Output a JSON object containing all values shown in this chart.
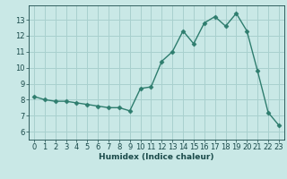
{
  "x": [
    0,
    1,
    2,
    3,
    4,
    5,
    6,
    7,
    8,
    9,
    10,
    11,
    12,
    13,
    14,
    15,
    16,
    17,
    18,
    19,
    20,
    21,
    22,
    23
  ],
  "y": [
    8.2,
    8.0,
    7.9,
    7.9,
    7.8,
    7.7,
    7.6,
    7.5,
    7.5,
    7.3,
    8.7,
    8.8,
    10.4,
    11.0,
    12.3,
    11.5,
    12.8,
    13.2,
    12.6,
    13.4,
    12.3,
    9.8,
    7.2,
    6.4
  ],
  "line_color": "#2e7d6e",
  "marker": "D",
  "marker_size": 2.5,
  "bg_color": "#c9e8e6",
  "grid_color": "#a8d0ce",
  "xlabel": "Humidex (Indice chaleur)",
  "xlim": [
    -0.5,
    23.5
  ],
  "ylim": [
    5.5,
    13.9
  ],
  "yticks": [
    6,
    7,
    8,
    9,
    10,
    11,
    12,
    13
  ],
  "xticks": [
    0,
    1,
    2,
    3,
    4,
    5,
    6,
    7,
    8,
    9,
    10,
    11,
    12,
    13,
    14,
    15,
    16,
    17,
    18,
    19,
    20,
    21,
    22,
    23
  ],
  "font_color": "#1a4a4a",
  "xlabel_fontsize": 6.5,
  "tick_fontsize": 6.0,
  "linewidth": 1.0
}
